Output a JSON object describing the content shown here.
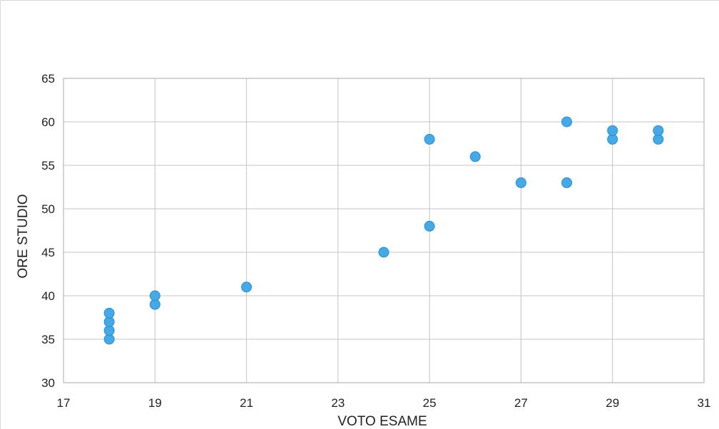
{
  "chart_data": {
    "type": "scatter",
    "title": "",
    "xlabel": "VOTO ESAME",
    "ylabel": "ORE STUDIO",
    "xlim": [
      17,
      31
    ],
    "ylim": [
      30,
      65
    ],
    "xticks": [
      17,
      19,
      21,
      23,
      25,
      27,
      29,
      31
    ],
    "yticks": [
      30,
      35,
      40,
      45,
      50,
      55,
      60,
      65
    ],
    "grid": true,
    "point_color": "#45a9e6",
    "points": [
      {
        "x": 18,
        "y": 35
      },
      {
        "x": 18,
        "y": 36
      },
      {
        "x": 18,
        "y": 37
      },
      {
        "x": 18,
        "y": 38
      },
      {
        "x": 19,
        "y": 39
      },
      {
        "x": 19,
        "y": 40
      },
      {
        "x": 21,
        "y": 41
      },
      {
        "x": 24,
        "y": 45
      },
      {
        "x": 25,
        "y": 48
      },
      {
        "x": 25,
        "y": 58
      },
      {
        "x": 26,
        "y": 56
      },
      {
        "x": 27,
        "y": 53
      },
      {
        "x": 28,
        "y": 53
      },
      {
        "x": 28,
        "y": 60
      },
      {
        "x": 29,
        "y": 58
      },
      {
        "x": 29,
        "y": 59
      },
      {
        "x": 30,
        "y": 58
      },
      {
        "x": 30,
        "y": 59
      }
    ]
  }
}
